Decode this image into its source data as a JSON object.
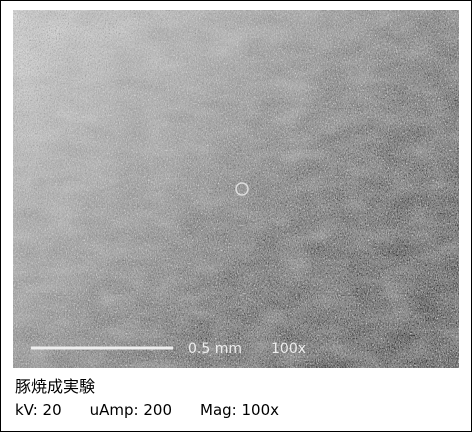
{
  "image": {
    "scale_bar_label": "0.5 mm",
    "magnification_label": "100x"
  },
  "caption": {
    "title": "豚焼成実験",
    "fields": [
      "kV: 20",
      "uAmp: 200",
      "Mag: 100x"
    ]
  }
}
